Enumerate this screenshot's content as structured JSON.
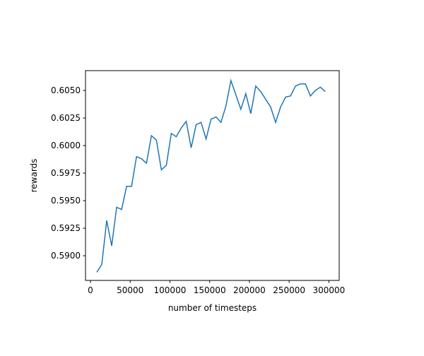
{
  "chart_data": {
    "type": "line",
    "x_label": "number of timesteps",
    "y_label": "rewards",
    "x": [
      8000,
      14250,
      20500,
      26750,
      33000,
      39250,
      45500,
      51750,
      58000,
      64250,
      70500,
      76750,
      83000,
      89250,
      95500,
      101750,
      108000,
      114250,
      120500,
      126750,
      133000,
      139250,
      145500,
      151750,
      158000,
      164250,
      170500,
      176750,
      183000,
      189250,
      195500,
      201750,
      208000,
      214250,
      220500,
      226750,
      233000,
      239250,
      245500,
      251750,
      258000,
      264250,
      270500,
      276750,
      283000,
      289250,
      295500
    ],
    "series": [
      {
        "color": "#1f77b4",
        "values": [
          0.5885,
          0.5892,
          0.5932,
          0.5909,
          0.5944,
          0.5942,
          0.5963,
          0.5963,
          0.599,
          0.5988,
          0.5984,
          0.6009,
          0.6005,
          0.5978,
          0.5982,
          0.6011,
          0.6008,
          0.6016,
          0.6022,
          0.5998,
          0.6019,
          0.6021,
          0.6006,
          0.6024,
          0.6026,
          0.6021,
          0.6036,
          0.6059,
          0.6046,
          0.6033,
          0.6047,
          0.6029,
          0.6054,
          0.6049,
          0.6042,
          0.6035,
          0.6021,
          0.6035,
          0.6044,
          0.6045,
          0.6054,
          0.6056,
          0.6056,
          0.6045,
          0.605,
          0.6053,
          0.6049
        ]
      }
    ],
    "xlim": [
      -6200,
      313000
    ],
    "ylim": [
      0.58776,
      0.6068
    ],
    "xticks": [
      0,
      50000,
      100000,
      150000,
      200000,
      250000,
      300000
    ],
    "yticks": [
      {
        "value": 0.59,
        "label": "0.5900"
      },
      {
        "value": 0.5925,
        "label": "0.5925"
      },
      {
        "value": 0.595,
        "label": "0.5950"
      },
      {
        "value": 0.5975,
        "label": "0.5975"
      },
      {
        "value": 0.6,
        "label": "0.6000"
      },
      {
        "value": 0.6025,
        "label": "0.6025"
      },
      {
        "value": 0.605,
        "label": "0.6050"
      }
    ]
  }
}
